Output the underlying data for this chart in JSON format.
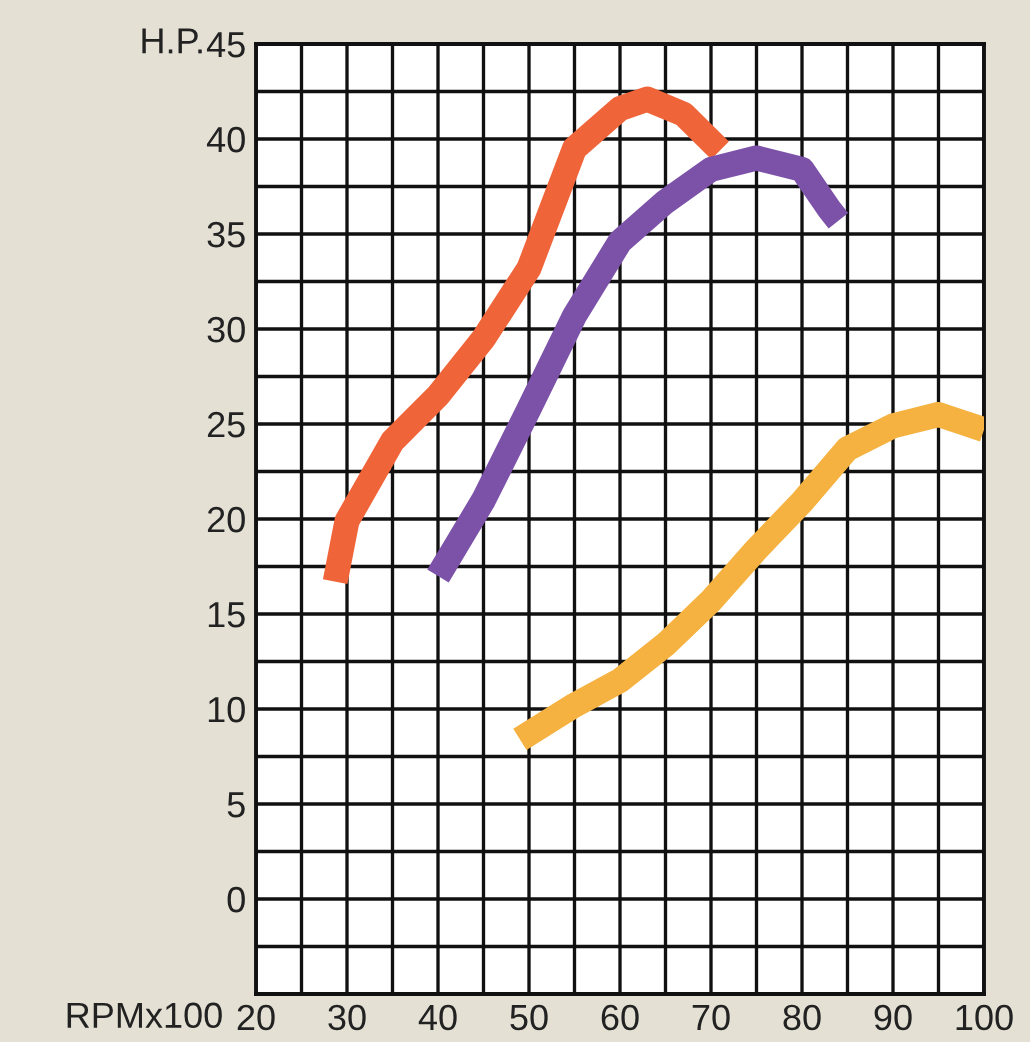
{
  "chart_data": {
    "type": "line",
    "xlabel": "RPMx100",
    "ylabel": "H.P.",
    "xlim": [
      20,
      100
    ],
    "ylim": [
      -5,
      45
    ],
    "xticks": [
      20,
      {
        "value": 25,
        "label": null
      },
      30,
      {
        "value": 35,
        "label": null
      },
      40,
      {
        "value": 45,
        "label": null
      },
      50,
      {
        "value": 55,
        "label": null
      },
      60,
      {
        "value": 65,
        "label": null
      },
      70,
      {
        "value": 75,
        "label": null
      },
      80,
      {
        "value": 85,
        "label": null
      },
      90,
      {
        "value": 95,
        "label": null
      },
      100
    ],
    "yticks": [
      {
        "value": -2.5,
        "label": null
      },
      0,
      {
        "value": 2.5,
        "label": null
      },
      5,
      {
        "value": 7.5,
        "label": null
      },
      10,
      {
        "value": 12.5,
        "label": null
      },
      15,
      {
        "value": 17.5,
        "label": null
      },
      20,
      {
        "value": 22.5,
        "label": null
      },
      25,
      {
        "value": 27.5,
        "label": null
      },
      30,
      {
        "value": 32.5,
        "label": null
      },
      35,
      {
        "value": 37.5,
        "label": null
      },
      40,
      {
        "value": 42.5,
        "label": null
      },
      45
    ],
    "grid": true,
    "marker": "none",
    "line_style": "solid",
    "series": [
      {
        "color": "#f0643a",
        "x": [
          28.7,
          30,
          35,
          40,
          45,
          50,
          55,
          60,
          63,
          67,
          71
        ],
        "values": [
          16.7,
          19.9,
          24.1,
          26.5,
          29.5,
          33.2,
          39.5,
          41.6,
          42.1,
          41.3,
          39.4
        ]
      },
      {
        "color": "#7b52a8",
        "x": [
          40,
          45,
          50,
          55,
          60,
          65,
          70,
          75,
          80,
          83,
          84
        ],
        "values": [
          17,
          21,
          25.8,
          30.7,
          34.6,
          36.7,
          38.4,
          39,
          38.4,
          36.3,
          35.7
        ]
      },
      {
        "color": "#f5b240",
        "x": [
          49,
          55,
          60,
          65,
          70,
          75,
          80,
          85,
          90,
          95,
          100
        ],
        "values": [
          8.4,
          10.2,
          11.5,
          13.4,
          15.7,
          18.4,
          20.9,
          23.7,
          24.9,
          25.5,
          24.7
        ]
      }
    ]
  }
}
